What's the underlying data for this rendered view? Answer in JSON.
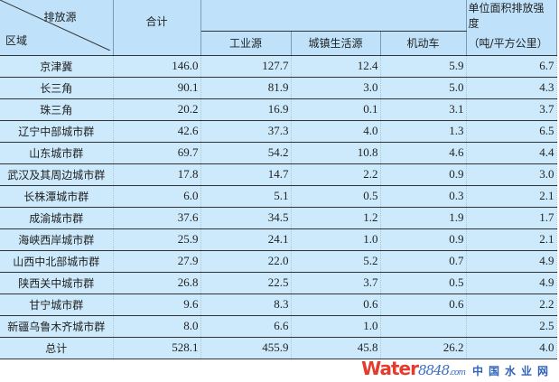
{
  "header": {
    "corner_top": "排放源",
    "corner_bottom": "区域",
    "total": "合计",
    "industrial": "工业源",
    "urban": "城镇生活源",
    "vehicle": "机动车",
    "intensity_line1": "单位面积排放强度",
    "intensity_line2": "（吨/平方公里）"
  },
  "rows": [
    {
      "region": "京津冀",
      "total": "146.0",
      "industrial": "127.7",
      "urban": "12.4",
      "vehicle": "5.9",
      "intensity": "6.7"
    },
    {
      "region": "长三角",
      "total": "90.1",
      "industrial": "81.9",
      "urban": "3.0",
      "vehicle": "5.0",
      "intensity": "4.3"
    },
    {
      "region": "珠三角",
      "total": "20.2",
      "industrial": "16.9",
      "urban": "0.1",
      "vehicle": "3.1",
      "intensity": "3.7"
    },
    {
      "region": "辽宁中部城市群",
      "total": "42.6",
      "industrial": "37.3",
      "urban": "4.0",
      "vehicle": "1.3",
      "intensity": "6.5"
    },
    {
      "region": "山东城市群",
      "total": "69.7",
      "industrial": "54.2",
      "urban": "10.8",
      "vehicle": "4.6",
      "intensity": "4.4"
    },
    {
      "region": "武汉及其周边城市群",
      "total": "17.8",
      "industrial": "14.7",
      "urban": "2.2",
      "vehicle": "0.9",
      "intensity": "3.0"
    },
    {
      "region": "长株潭城市群",
      "total": "6.0",
      "industrial": "5.1",
      "urban": "0.5",
      "vehicle": "0.3",
      "intensity": "2.1"
    },
    {
      "region": "成渝城市群",
      "total": "37.6",
      "industrial": "34.5",
      "urban": "1.2",
      "vehicle": "1.9",
      "intensity": "1.7"
    },
    {
      "region": "海峡西岸城市群",
      "total": "25.9",
      "industrial": "24.1",
      "urban": "1.0",
      "vehicle": "0.9",
      "intensity": "2.1"
    },
    {
      "region": "山西中北部城市群",
      "total": "27.9",
      "industrial": "22.0",
      "urban": "5.2",
      "vehicle": "0.7",
      "intensity": "4.9"
    },
    {
      "region": "陕西关中城市群",
      "total": "26.8",
      "industrial": "22.5",
      "urban": "3.7",
      "vehicle": "0.5",
      "intensity": "4.9"
    },
    {
      "region": "甘宁城市群",
      "total": "9.6",
      "industrial": "8.3",
      "urban": "0.6",
      "vehicle": "0.6",
      "intensity": "2.2"
    },
    {
      "region": "新疆乌鲁木齐城市群",
      "total": "8.0",
      "industrial": "6.6",
      "urban": "1.0",
      "vehicle": "",
      "intensity": "2.5"
    },
    {
      "region": "总计",
      "total": "528.1",
      "industrial": "455.9",
      "urban": "45.8",
      "vehicle": "26.2",
      "intensity": "4.0"
    }
  ],
  "watermark": {
    "brand": "Water",
    "number": "8848",
    "domain": ".com",
    "cn": "中国水业网"
  }
}
